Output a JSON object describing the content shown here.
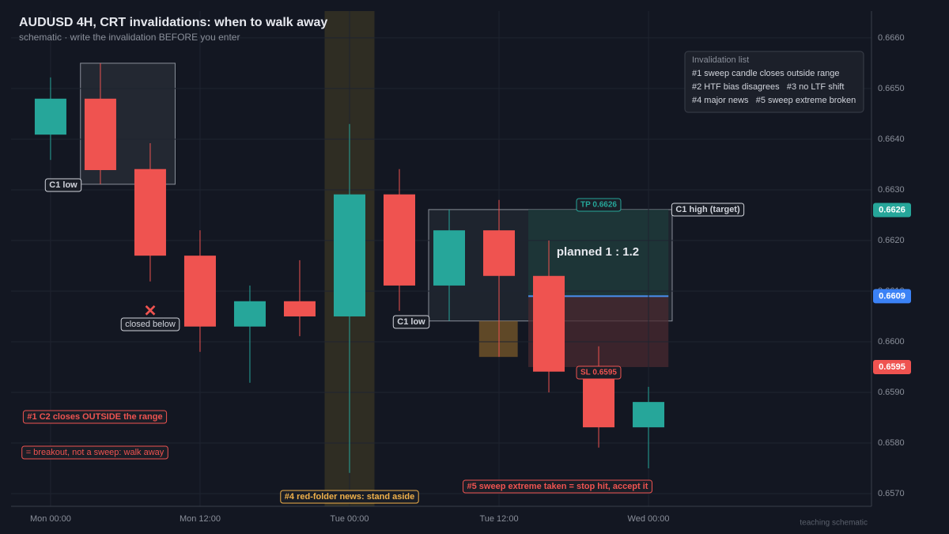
{
  "chart_data": {
    "type": "candlestick",
    "title": "AUDUSD 4H, CRT invalidations: when to walk away",
    "subtitle": "schematic  ·  write the invalidation BEFORE you enter",
    "x": [
      0,
      4,
      8,
      12,
      16,
      20,
      24,
      28,
      32,
      36,
      40,
      44,
      48
    ],
    "open": [
      0.66409,
      0.6648,
      0.66341,
      0.6617,
      0.6603,
      0.6608,
      0.6605,
      0.66291,
      0.66111,
      0.6622,
      0.6613,
      0.65941,
      0.65831
    ],
    "high": [
      0.66522,
      0.6655,
      0.66392,
      0.6622,
      0.66111,
      0.66161,
      0.6643,
      0.66341,
      0.66261,
      0.6628,
      0.662,
      0.65991,
      0.65911
    ],
    "low": [
      0.66359,
      0.66311,
      0.66119,
      0.6598,
      0.65919,
      0.66011,
      0.65741,
      0.66061,
      0.66041,
      0.6597,
      0.659,
      0.65791,
      0.6575
    ],
    "close": [
      0.6648,
      0.66339,
      0.6617,
      0.6603,
      0.6608,
      0.6605,
      0.66291,
      0.66111,
      0.6622,
      0.6613,
      0.65941,
      0.65831,
      0.65881
    ],
    "up_color": "#26a69a",
    "down_color": "#ef5350",
    "xlim": [
      -3.17,
      65.9
    ],
    "ylim": [
      0.65675,
      0.66653
    ],
    "xticks": [
      {
        "value": 0,
        "label": "Mon 00:00"
      },
      {
        "value": 12,
        "label": "Mon 12:00"
      },
      {
        "value": 24,
        "label": "Tue 00:00"
      },
      {
        "value": 36,
        "label": "Tue 12:00"
      },
      {
        "value": 48,
        "label": "Wed 00:00"
      }
    ],
    "yticks": [
      {
        "value": 0.657,
        "label": "0.6570"
      },
      {
        "value": 0.658,
        "label": "0.6580"
      },
      {
        "value": 0.659,
        "label": "0.6590"
      },
      {
        "value": 0.66,
        "label": "0.6600"
      },
      {
        "value": 0.661,
        "label": "0.6610"
      },
      {
        "value": 0.662,
        "label": "0.6620"
      },
      {
        "value": 0.663,
        "label": "0.6630"
      },
      {
        "value": 0.664,
        "label": "0.6640"
      },
      {
        "value": 0.665,
        "label": "0.6650"
      },
      {
        "value": 0.666,
        "label": "0.6660"
      }
    ],
    "grid": true,
    "zones": [
      {
        "x0": 22,
        "x1": 26,
        "y0": 0.65675,
        "y1": 0.66653,
        "color": "#3a3524"
      },
      {
        "x0": 2.4,
        "x1": 10,
        "y0": 0.66311,
        "y1": 0.6655,
        "color": "#2a2f38"
      },
      {
        "x0": 30.35,
        "x1": 49.9,
        "y0": 0.66041,
        "y1": 0.66261,
        "color": "#232a33"
      },
      {
        "x0": 34.4,
        "x1": 37.5,
        "y0": 0.6597,
        "y1": 0.66041,
        "color": "#7a5a2a"
      },
      {
        "x0": 38.35,
        "x1": 49.6,
        "y0": 0.6609,
        "y1": 0.66261,
        "color": "#1d3b3b"
      },
      {
        "x0": 38.35,
        "x1": 49.6,
        "y0": 0.6595,
        "y1": 0.6609,
        "color": "#4a2a30"
      }
    ],
    "entry_line": {
      "x0": 38.35,
      "x1": 49.6,
      "value": 0.6609,
      "color": "#4a8ff0"
    },
    "price_tags": [
      {
        "value": 0.6626,
        "color": "#26a69a"
      },
      {
        "value": 0.6609,
        "color": "#3b82f6"
      },
      {
        "value": 0.6595,
        "color": "#ef5350"
      }
    ],
    "annotations": [
      {
        "text": "C1 low",
        "color": "#d1d4dc"
      },
      {
        "text": "closed below",
        "color": "#d1d4dc"
      },
      {
        "text": "C1 low",
        "color": "#d1d4dc"
      },
      {
        "text": "TP 0.6626",
        "color": "#26a69a"
      },
      {
        "text": "C1 high (target)",
        "color": "#d1d4dc"
      },
      {
        "text": "planned 1 : 1.2",
        "color": "#e6e8ee"
      },
      {
        "text": "SL 0.6595",
        "color": "#ef5350"
      },
      {
        "text": "#1  C2 closes OUTSIDE the range",
        "color": "#ef5350"
      },
      {
        "text": "= breakout, not a sweep: walk away",
        "color": "#ef5350"
      },
      {
        "text": "#4  red-folder news: stand aside",
        "color": "#f0b04a"
      },
      {
        "text": "#5  sweep extreme taken = stop hit, accept it",
        "color": "#ef5350"
      },
      {
        "text": "teaching schematic",
        "color": "#5a606c"
      }
    ],
    "legend": {
      "title": "Invalidation list",
      "items": [
        "#1 sweep candle closes outside range",
        "#2 HTF bias disagrees   #3 no LTF shift",
        "#4 major news   #5 sweep extreme broken"
      ]
    }
  }
}
